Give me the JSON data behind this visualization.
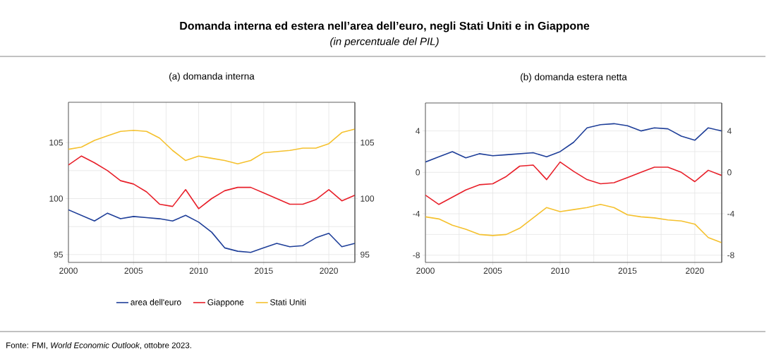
{
  "chart_data": [
    {
      "type": "line",
      "title": "(a) domanda interna",
      "x": [
        2000,
        2001,
        2002,
        2003,
        2004,
        2005,
        2006,
        2007,
        2008,
        2009,
        2010,
        2011,
        2012,
        2013,
        2014,
        2015,
        2016,
        2017,
        2018,
        2019,
        2020,
        2021,
        2022
      ],
      "series": [
        {
          "name": "area dell'euro",
          "color": "#1f3f99",
          "values": [
            99.0,
            98.5,
            98.0,
            98.7,
            98.2,
            98.4,
            98.3,
            98.2,
            98.0,
            98.5,
            97.9,
            97.0,
            95.6,
            95.3,
            95.2,
            95.6,
            96.0,
            95.7,
            95.8,
            96.5,
            96.9,
            95.7,
            96.0
          ]
        },
        {
          "name": "Giappone",
          "color": "#e8202a",
          "values": [
            103.0,
            103.8,
            103.2,
            102.5,
            101.6,
            101.3,
            100.6,
            99.5,
            99.3,
            100.8,
            99.1,
            100.0,
            100.7,
            101.0,
            101.0,
            100.5,
            100.0,
            99.5,
            99.5,
            99.9,
            100.8,
            99.8,
            100.3
          ]
        },
        {
          "name": "Stati Uniti",
          "color": "#f5c12e",
          "values": [
            104.4,
            104.6,
            105.2,
            105.6,
            106.0,
            106.1,
            106.0,
            105.4,
            104.3,
            103.4,
            103.8,
            103.6,
            103.4,
            103.1,
            103.4,
            104.1,
            104.2,
            104.3,
            104.5,
            104.5,
            104.9,
            105.9,
            106.2
          ]
        }
      ],
      "xlim": [
        2000,
        2022
      ],
      "xticks": [
        2000,
        2005,
        2010,
        2015,
        2020
      ],
      "ylim": [
        94.3,
        108.6
      ],
      "yticks": [
        95,
        100,
        105
      ],
      "y2lim": [
        94.3,
        108.6
      ],
      "y2ticks": [
        95,
        100,
        105
      ],
      "grid": true,
      "legend": "bottom",
      "line_style": "solid",
      "marker": "none",
      "annotations": [
        "**Domanda interna ed estera nell’area dell’euro, negli Stati Uniti e in Giappone**",
        "*(in percentuale del PIL)*",
        "Fonte: FMI, *World Economic Outlook*, ottobre 2023."
      ]
    },
    {
      "type": "line",
      "title": "(b) domanda estera netta",
      "x": [
        2000,
        2001,
        2002,
        2003,
        2004,
        2005,
        2006,
        2007,
        2008,
        2009,
        2010,
        2011,
        2012,
        2013,
        2014,
        2015,
        2016,
        2017,
        2018,
        2019,
        2020,
        2021,
        2022
      ],
      "series": [
        {
          "color": "#1f3f99",
          "values": [
            1.0,
            1.5,
            2.0,
            1.4,
            1.8,
            1.6,
            1.7,
            1.8,
            1.9,
            1.5,
            2.0,
            2.9,
            4.3,
            4.6,
            4.7,
            4.5,
            4.0,
            4.3,
            4.2,
            3.5,
            3.1,
            4.3,
            4.0
          ]
        },
        {
          "color": "#e8202a",
          "values": [
            -2.2,
            -3.1,
            -2.4,
            -1.7,
            -1.2,
            -1.1,
            -0.4,
            0.6,
            0.7,
            -0.7,
            1.0,
            0.1,
            -0.7,
            -1.1,
            -1.0,
            -0.5,
            0.0,
            0.5,
            0.5,
            0.0,
            -0.9,
            0.2,
            -0.3
          ]
        },
        {
          "color": "#f5c12e",
          "values": [
            -4.3,
            -4.5,
            -5.1,
            -5.5,
            -6.0,
            -6.1,
            -6.0,
            -5.4,
            -4.4,
            -3.4,
            -3.8,
            -3.6,
            -3.4,
            -3.1,
            -3.4,
            -4.1,
            -4.3,
            -4.4,
            -4.6,
            -4.7,
            -5.0,
            -6.3,
            -6.8
          ]
        }
      ],
      "xlim": [
        2000,
        2022
      ],
      "xticks": [
        2000,
        2005,
        2010,
        2015,
        2020
      ],
      "ylim": [
        -8.7,
        6.7
      ],
      "yticks": [
        -8,
        -4,
        0,
        4
      ],
      "y2lim": [
        -8.7,
        6.7
      ],
      "y2ticks": [
        -8,
        -4,
        0,
        4
      ],
      "grid": true,
      "line_style": "solid",
      "marker": "none"
    }
  ]
}
